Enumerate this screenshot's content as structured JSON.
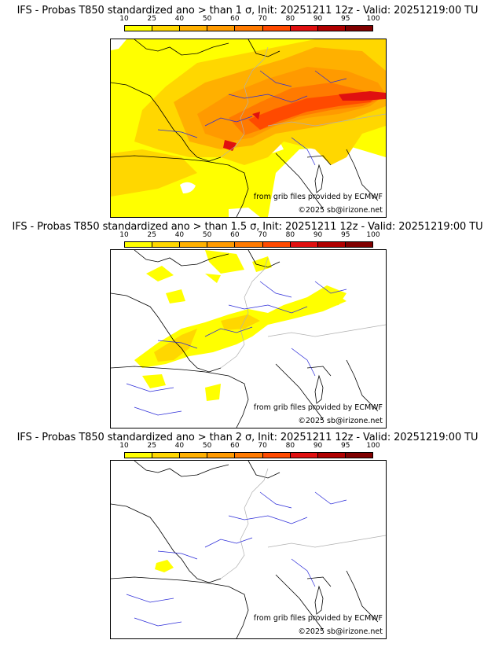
{
  "legend": {
    "ticks": [
      "10",
      "25",
      "40",
      "50",
      "60",
      "70",
      "80",
      "90",
      "95",
      "100"
    ],
    "colors": [
      "#ffff00",
      "#ffd700",
      "#ffb000",
      "#ff9a00",
      "#ff7a00",
      "#ff4a00",
      "#e01010",
      "#b00000",
      "#800000"
    ]
  },
  "panels": [
    {
      "title": "IFS - Probas T850  standardized ano > than 1 σ, Init: 20251211 12z - Valid: 20251219:00 TU"
    },
    {
      "title": "IFS - Probas T850  standardized ano > than 1.5 σ, Init: 20251211 12z - Valid: 20251219:00 TU"
    },
    {
      "title": "IFS - Probas T850  standardized ano > than 2 σ, Init: 20251211 12z - Valid: 20251219:00 TU"
    }
  ],
  "credits": {
    "source": "from grib files provided by ECMWF",
    "copyright": "©2025 sb@irizone.net"
  },
  "map": {
    "coast": "#000000",
    "rivers": "#2b2bd8",
    "borders": "#b0b0b0"
  }
}
